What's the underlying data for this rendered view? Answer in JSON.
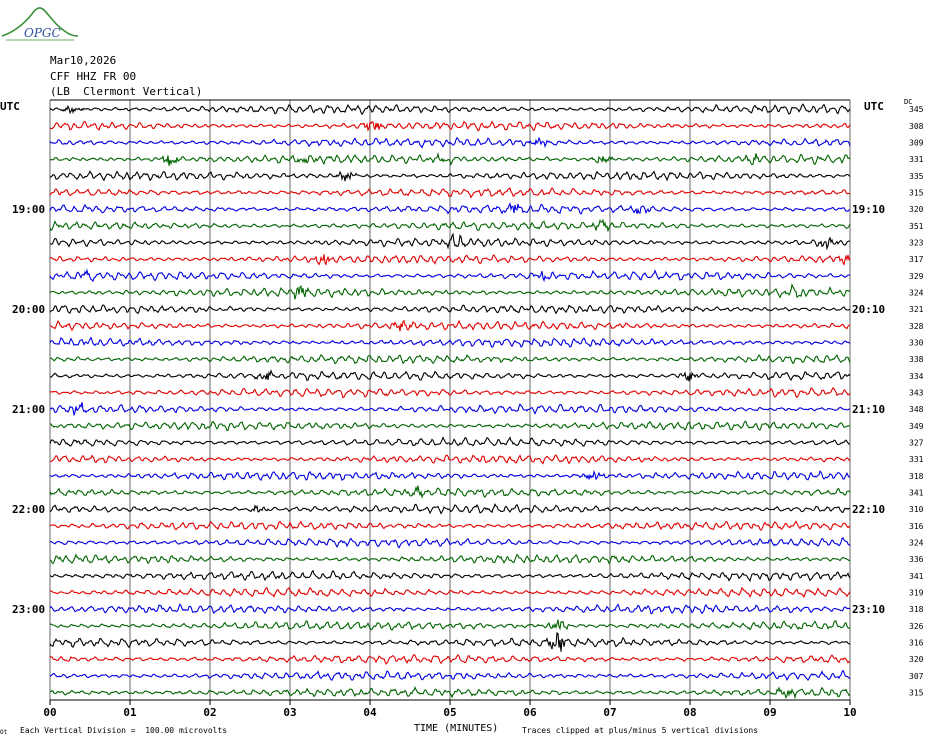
{
  "logo": {
    "text": "OPGC"
  },
  "header": {
    "date": "Mar10,2026",
    "station": "CFF HHZ FR 00",
    "location": "(LB  Clermont Vertical)"
  },
  "labels": {
    "utc_left": "UTC",
    "utc_right": "UTC",
    "dc": "DC"
  },
  "footer": {
    "scale": "Each Vertical Division =  100.00 microvolts",
    "clip": "Traces clipped at plus/minus 5 vertical divisions",
    "corner": "Ot"
  },
  "chart_data": {
    "type": "line",
    "title": "",
    "xlabel": "TIME (MINUTES)",
    "ylabel": "",
    "xlim": [
      0,
      10
    ],
    "x_tick_labels": [
      "00",
      "01",
      "02",
      "03",
      "04",
      "05",
      "06",
      "07",
      "08",
      "09",
      "10"
    ],
    "trace_colors": [
      "#000000",
      "#e00000",
      "#0000e0",
      "#006400"
    ],
    "left_hour_labels": [
      {
        "row": 6,
        "text": "19:00"
      },
      {
        "row": 12,
        "text": "20:00"
      },
      {
        "row": 18,
        "text": "21:00"
      },
      {
        "row": 24,
        "text": "22:00"
      },
      {
        "row": 30,
        "text": "23:00"
      }
    ],
    "right_hour_labels": [
      {
        "row": 6,
        "text": "19:10"
      },
      {
        "row": 12,
        "text": "20:10"
      },
      {
        "row": 18,
        "text": "21:10"
      },
      {
        "row": 24,
        "text": "22:10"
      },
      {
        "row": 30,
        "text": "23:10"
      }
    ],
    "dc_offsets": [
      345,
      308,
      309,
      331,
      335,
      315,
      320,
      351,
      323,
      317,
      329,
      324,
      321,
      328,
      330,
      338,
      334,
      343,
      348,
      349,
      327,
      331,
      318,
      341,
      310,
      316,
      324,
      336,
      341,
      319,
      318,
      326,
      316,
      320,
      307,
      315
    ],
    "events": [
      {
        "row": 0,
        "minute": 0.3,
        "amp": 1.6
      },
      {
        "row": 1,
        "minute": 4.05,
        "amp": 2.2
      },
      {
        "row": 2,
        "minute": 6.1,
        "amp": 1.3
      },
      {
        "row": 3,
        "minute": 1.5,
        "amp": 2.0
      },
      {
        "row": 3,
        "minute": 3.2,
        "amp": 1.5
      },
      {
        "row": 3,
        "minute": 4.9,
        "amp": 1.8
      },
      {
        "row": 3,
        "minute": 6.9,
        "amp": 1.6
      },
      {
        "row": 3,
        "minute": 8.8,
        "amp": 1.5
      },
      {
        "row": 4,
        "minute": 3.7,
        "amp": 1.8
      },
      {
        "row": 6,
        "minute": 5.8,
        "amp": 1.7
      },
      {
        "row": 6,
        "minute": 7.4,
        "amp": 1.5
      },
      {
        "row": 7,
        "minute": 6.9,
        "amp": 2.0
      },
      {
        "row": 8,
        "minute": 5.05,
        "amp": 2.0
      },
      {
        "row": 8,
        "minute": 9.7,
        "amp": 1.8
      },
      {
        "row": 9,
        "minute": 3.4,
        "amp": 2.0
      },
      {
        "row": 9,
        "minute": 9.95,
        "amp": 1.8
      },
      {
        "row": 10,
        "minute": 0.45,
        "amp": 1.4
      },
      {
        "row": 10,
        "minute": 6.2,
        "amp": 1.6
      },
      {
        "row": 11,
        "minute": 3.1,
        "amp": 1.8
      },
      {
        "row": 11,
        "minute": 9.3,
        "amp": 1.7
      },
      {
        "row": 13,
        "minute": 4.4,
        "amp": 1.5
      },
      {
        "row": 16,
        "minute": 2.7,
        "amp": 1.5
      },
      {
        "row": 16,
        "minute": 8.0,
        "amp": 1.6
      },
      {
        "row": 18,
        "minute": 0.35,
        "amp": 1.5
      },
      {
        "row": 22,
        "minute": 6.8,
        "amp": 1.5
      },
      {
        "row": 23,
        "minute": 4.6,
        "amp": 1.3
      },
      {
        "row": 24,
        "minute": 2.6,
        "amp": 1.3
      },
      {
        "row": 31,
        "minute": 6.35,
        "amp": 2.2
      },
      {
        "row": 32,
        "minute": 6.35,
        "amp": 3.0
      },
      {
        "row": 35,
        "minute": 9.2,
        "amp": 1.2
      }
    ]
  }
}
